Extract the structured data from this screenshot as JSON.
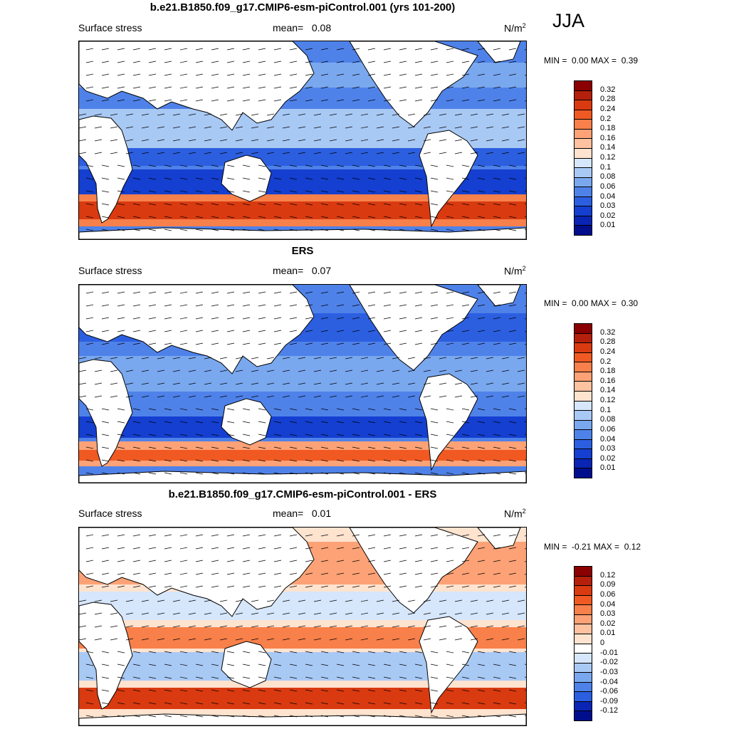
{
  "season": "JJA",
  "panels": [
    {
      "title": "b.e21.B1850.f09_g17.CMIP6-esm-piControl.001 (yrs 101-200)",
      "variable": "Surface stress",
      "mean_label": "mean=",
      "mean_value": "0.08",
      "units": "N/m",
      "units_sup": "2",
      "min_label": "MIN =",
      "min_value": "0.00",
      "max_label": "MAX =",
      "max_value": "0.39",
      "colorbar_labels": [
        "0.32",
        "0.28",
        "0.24",
        "0.2",
        "0.18",
        "0.16",
        "0.14",
        "0.12",
        "0.1",
        "0.08",
        "0.06",
        "0.04",
        "0.03",
        "0.02",
        "0.01"
      ],
      "colorbar_colors": [
        "#8b0000",
        "#b4200c",
        "#d93a10",
        "#f05a22",
        "#f8804a",
        "#fca276",
        "#fdc2a0",
        "#fee3cf",
        "#d6e6fb",
        "#a9c9f5",
        "#7aa8ef",
        "#4f82e9",
        "#2c5fe0",
        "#143fd0",
        "#0a25b4",
        "#000e8c"
      ]
    },
    {
      "title": "ERS",
      "variable": "Surface stress",
      "mean_label": "mean=",
      "mean_value": "0.07",
      "units": "N/m",
      "units_sup": "2",
      "min_label": "MIN =",
      "min_value": "0.00",
      "max_label": "MAX =",
      "max_value": "0.30",
      "colorbar_labels": [
        "0.32",
        "0.28",
        "0.24",
        "0.2",
        "0.18",
        "0.16",
        "0.14",
        "0.12",
        "0.1",
        "0.08",
        "0.06",
        "0.04",
        "0.03",
        "0.02",
        "0.01"
      ],
      "colorbar_colors": [
        "#8b0000",
        "#b4200c",
        "#d93a10",
        "#f05a22",
        "#f8804a",
        "#fca276",
        "#fdc2a0",
        "#fee3cf",
        "#d6e6fb",
        "#a9c9f5",
        "#7aa8ef",
        "#4f82e9",
        "#2c5fe0",
        "#143fd0",
        "#0a25b4",
        "#000e8c"
      ]
    },
    {
      "title": "b.e21.B1850.f09_g17.CMIP6-esm-piControl.001 - ERS",
      "variable": "Surface stress",
      "mean_label": "mean=",
      "mean_value": "0.01",
      "units": "N/m",
      "units_sup": "2",
      "min_label": "MIN =",
      "min_value": "-0.21",
      "max_label": "MAX =",
      "max_value": "0.12",
      "colorbar_labels": [
        "0.12",
        "0.09",
        "0.06",
        "0.04",
        "0.03",
        "0.02",
        "0.01",
        "0",
        "-0.01",
        "-0.02",
        "-0.03",
        "-0.04",
        "-0.06",
        "-0.09",
        "-0.12"
      ],
      "colorbar_colors": [
        "#8b0000",
        "#b4200c",
        "#d93a10",
        "#f05a22",
        "#f8804a",
        "#fca276",
        "#fdc2a0",
        "#fee3cf",
        "#ffffff",
        "#d6e6fb",
        "#a9c9f5",
        "#7aa8ef",
        "#4f82e9",
        "#2c5fe0",
        "#0a25b4",
        "#000e8c"
      ]
    }
  ]
}
